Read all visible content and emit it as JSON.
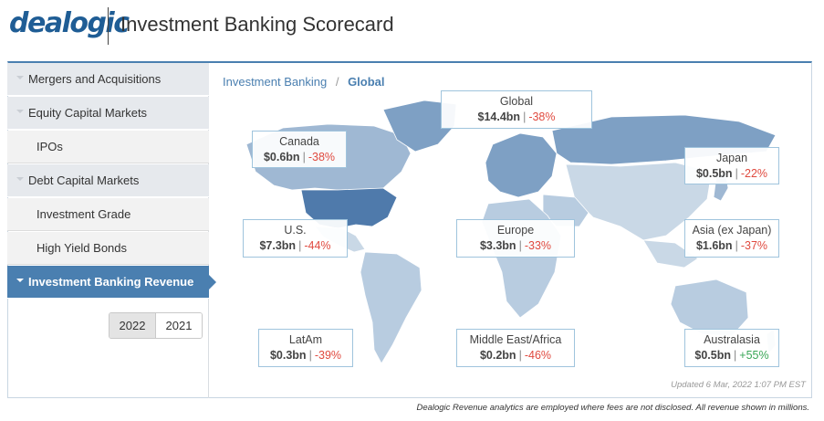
{
  "app": {
    "logo": "dealogic",
    "title": "Investment Banking Scorecard"
  },
  "sidebar": {
    "items": [
      {
        "label": "Mergers and Acquisitions"
      },
      {
        "label": "Equity Capital Markets"
      },
      {
        "label": "IPOs"
      },
      {
        "label": "Debt Capital Markets"
      },
      {
        "label": "Investment Grade"
      },
      {
        "label": "High Yield Bonds"
      },
      {
        "label": "Investment Banking Revenue"
      }
    ],
    "years": [
      "2022",
      "2021"
    ],
    "selected_year": "2022"
  },
  "breadcrumb": {
    "root": "Investment Banking",
    "separator": "/",
    "current": "Global"
  },
  "regions": {
    "global": {
      "name": "Global",
      "amount": "$14.4bn",
      "change": "-38%"
    },
    "canada": {
      "name": "Canada",
      "amount": "$0.6bn",
      "change": "-38%"
    },
    "japan": {
      "name": "Japan",
      "amount": "$0.5bn",
      "change": "-22%"
    },
    "us": {
      "name": "U.S.",
      "amount": "$7.3bn",
      "change": "-44%"
    },
    "europe": {
      "name": "Europe",
      "amount": "$3.3bn",
      "change": "-33%"
    },
    "asia": {
      "name": "Asia (ex Japan)",
      "amount": "$1.6bn",
      "change": "-37%"
    },
    "latam": {
      "name": "LatAm",
      "amount": "$0.3bn",
      "change": "-39%"
    },
    "mea": {
      "name": "Middle East/Africa",
      "amount": "$0.2bn",
      "change": "-46%"
    },
    "australasia": {
      "name": "Australasia",
      "amount": "$0.5bn",
      "change": "+55%"
    }
  },
  "updated": "Updated 6 Mar, 2022 1:07 PM EST",
  "footnote": "Dealogic Revenue analytics are employed where fees are not disclosed. All revenue shown in millions.",
  "colors": {
    "brand": "#1f5d95",
    "active": "#4a7fb0",
    "negative": "#e04a3f",
    "positive": "#3aa757",
    "map_light": "#c9d8e6",
    "map_mid": "#9fb8d3",
    "map_dark": "#4f7aab"
  }
}
